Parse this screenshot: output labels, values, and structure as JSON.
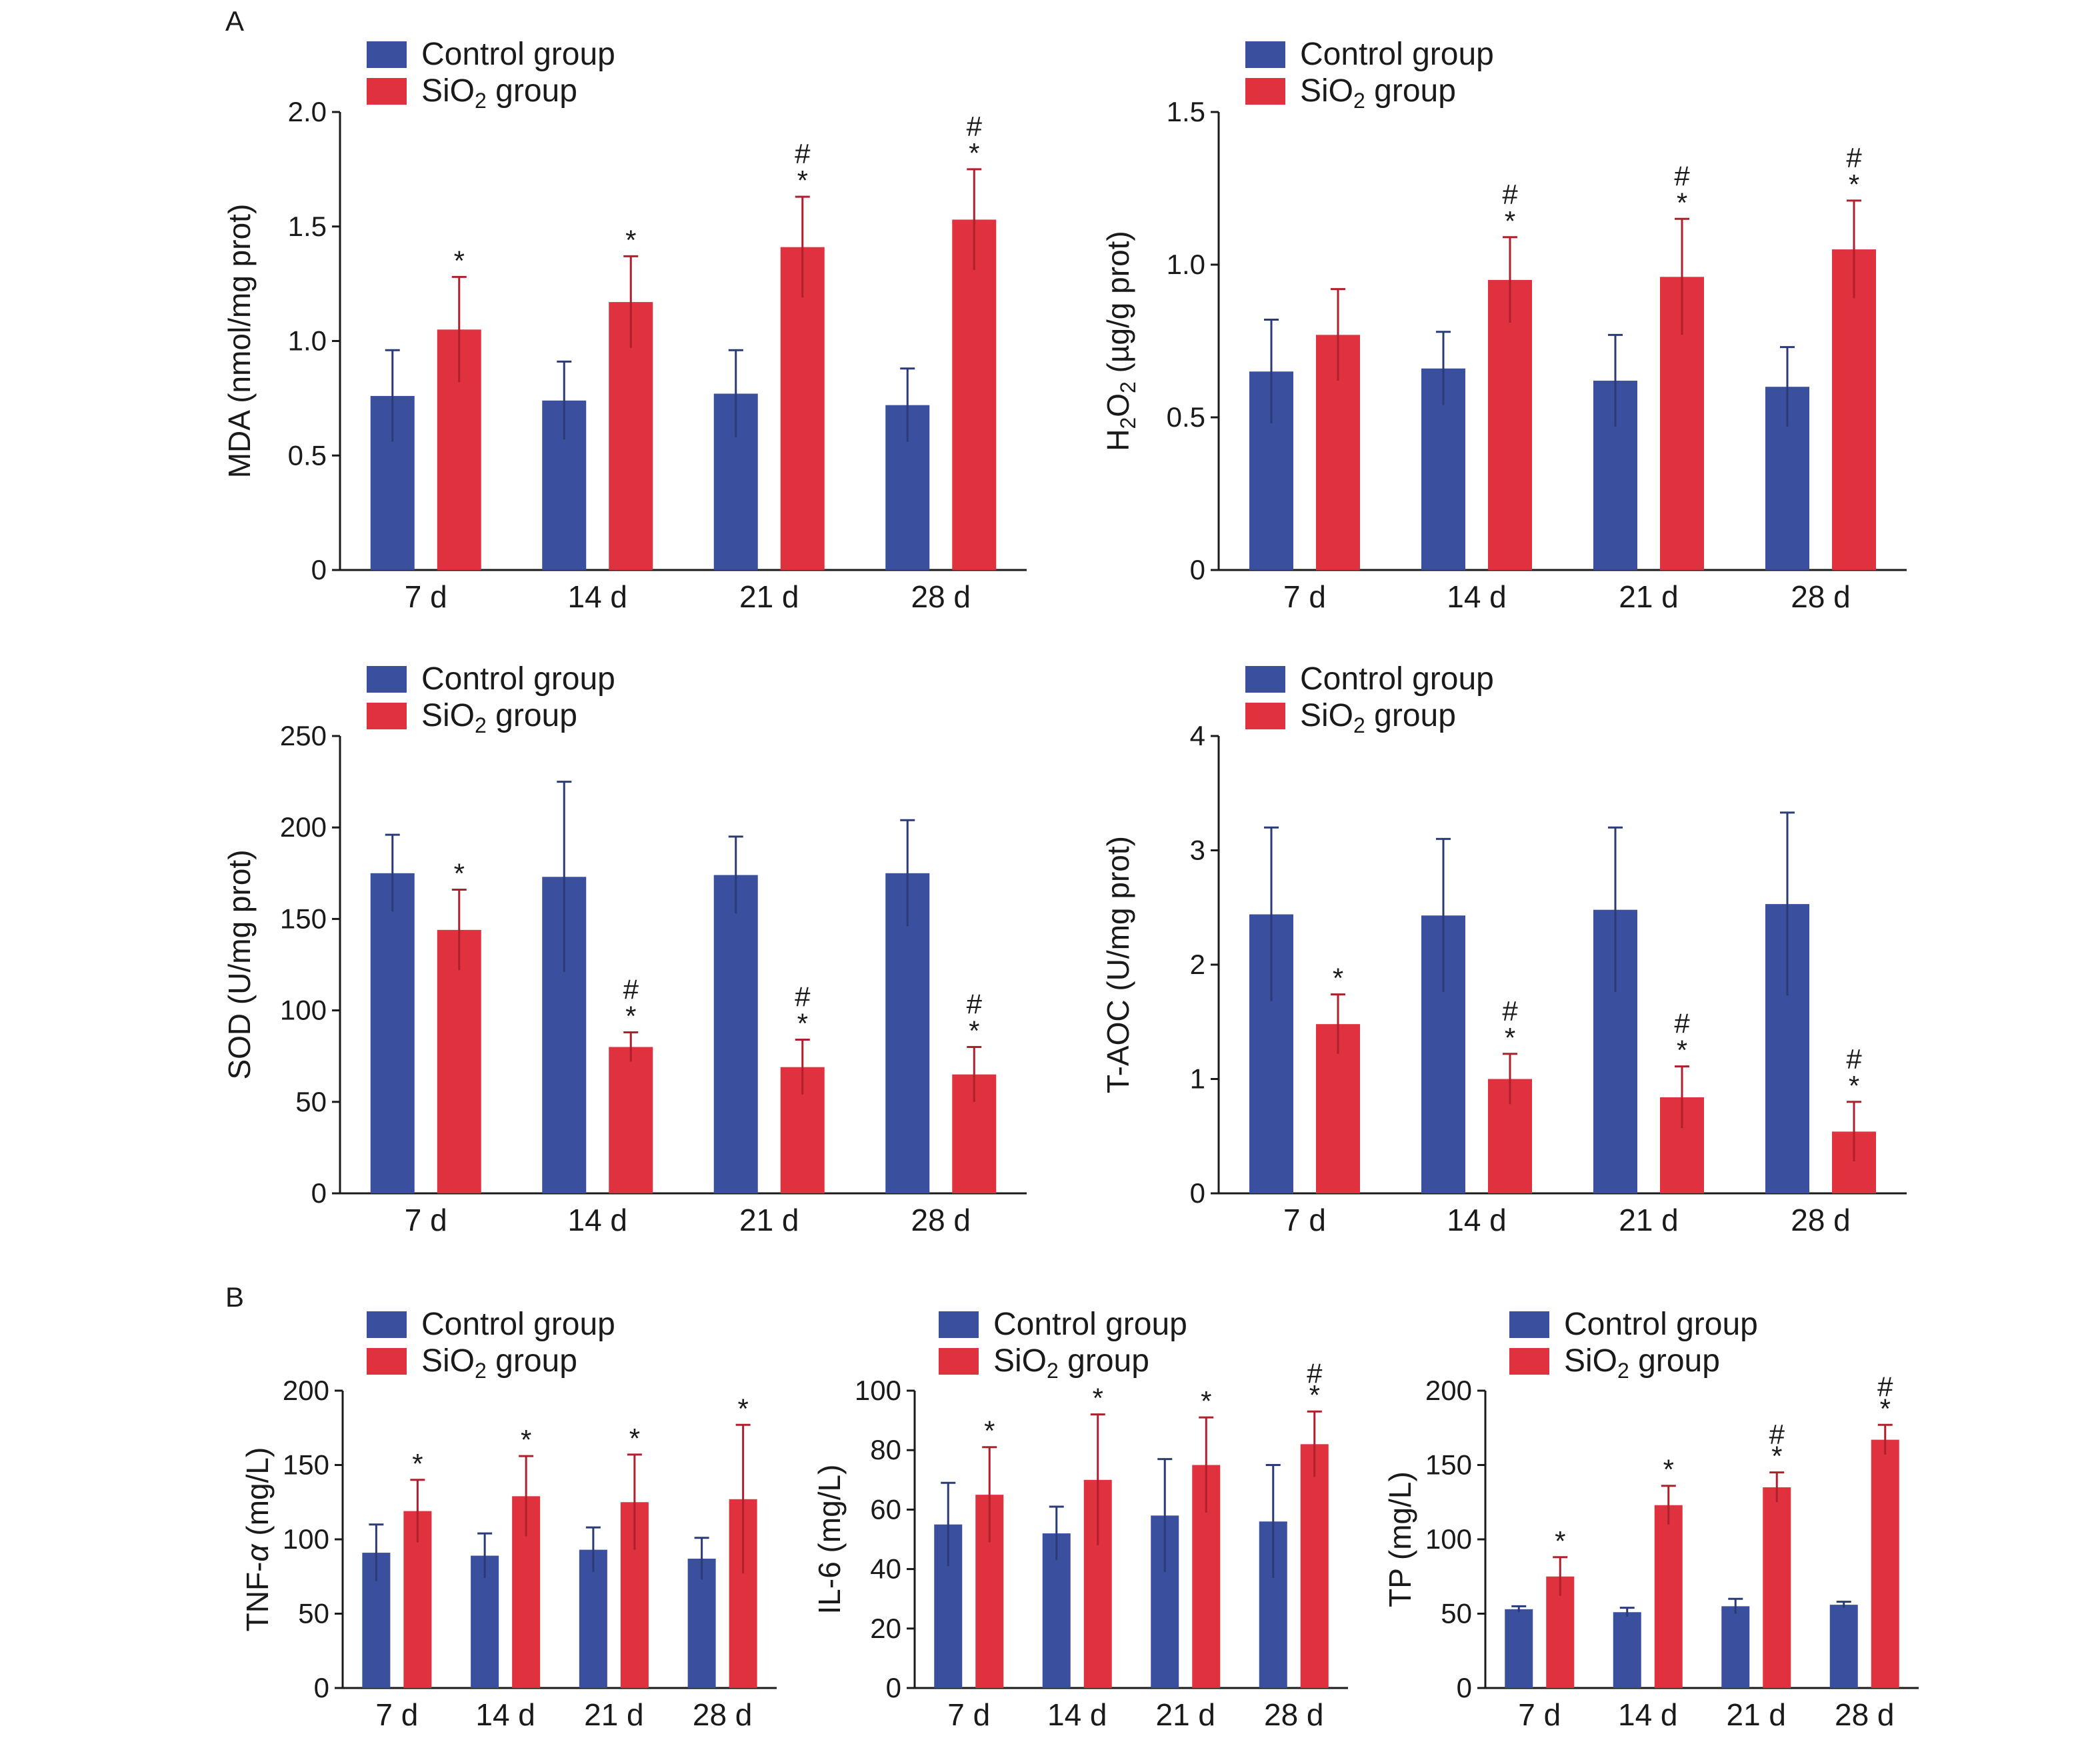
{
  "panel_labels": [
    "A",
    "B"
  ],
  "legend": [
    {
      "label": "Control group",
      "color": "#3a4f9e"
    },
    {
      "label": "SiO",
      "sub": "2",
      "tail": " group",
      "color": "#e0313f"
    }
  ],
  "colors": {
    "control": "#3a4f9e",
    "sio2": "#e0313f",
    "control_err": "#2b3b77",
    "sio2_err": "#b01f2c",
    "axis": "#1a1a1a"
  },
  "chart_data": [
    {
      "type": "bar",
      "ylabel": {
        "text": "MDA (nmol/mg prot)"
      },
      "categories": [
        "7 d",
        "14 d",
        "21 d",
        "28 d"
      ],
      "yticks": [
        "0",
        "0.5",
        "1.0",
        "1.5",
        "2.0"
      ],
      "ylim": [
        0,
        2.0
      ],
      "series": [
        {
          "name": "Control group",
          "values": [
            0.76,
            0.74,
            0.77,
            0.72
          ],
          "errors": [
            0.2,
            0.17,
            0.19,
            0.16
          ]
        },
        {
          "name": "SiO2 group",
          "values": [
            1.05,
            1.17,
            1.41,
            1.53
          ],
          "errors": [
            0.23,
            0.2,
            0.22,
            0.22
          ]
        }
      ],
      "significance": [
        "*",
        "*",
        "*#",
        "*#"
      ]
    },
    {
      "type": "bar",
      "ylabel": {
        "pre": "H",
        "sub": "2",
        "post": "O",
        "sub2": "2",
        "tail": " (µg/g prot)"
      },
      "categories": [
        "7 d",
        "14 d",
        "21 d",
        "28 d"
      ],
      "yticks": [
        "0",
        "0.5",
        "1.0",
        "1.5"
      ],
      "ylim": [
        0,
        1.5
      ],
      "series": [
        {
          "name": "Control group",
          "values": [
            0.65,
            0.66,
            0.62,
            0.6
          ],
          "errors": [
            0.17,
            0.12,
            0.15,
            0.13
          ]
        },
        {
          "name": "SiO2 group",
          "values": [
            0.77,
            0.95,
            0.96,
            1.05
          ],
          "errors": [
            0.15,
            0.14,
            0.19,
            0.16
          ]
        }
      ],
      "significance": [
        "",
        "*#",
        "*#",
        "*#"
      ]
    },
    {
      "type": "bar",
      "ylabel": {
        "text": "SOD (U/mg prot)"
      },
      "categories": [
        "7 d",
        "14 d",
        "21 d",
        "28 d"
      ],
      "yticks": [
        "0",
        "50",
        "100",
        "150",
        "200",
        "250"
      ],
      "ylim": [
        0,
        250
      ],
      "series": [
        {
          "name": "Control group",
          "values": [
            175,
            173,
            174,
            175
          ],
          "errors": [
            21,
            52,
            21,
            29
          ]
        },
        {
          "name": "SiO2 group",
          "values": [
            144,
            80,
            69,
            65
          ],
          "errors": [
            22,
            8,
            15,
            15
          ]
        }
      ],
      "significance": [
        "*",
        "*#",
        "*#",
        "*#"
      ]
    },
    {
      "type": "bar",
      "ylabel": {
        "text": "T-AOC (U/mg prot)"
      },
      "categories": [
        "7 d",
        "14 d",
        "21 d",
        "28 d"
      ],
      "yticks": [
        "0",
        "1",
        "2",
        "3",
        "4"
      ],
      "ylim": [
        0,
        4
      ],
      "series": [
        {
          "name": "Control group",
          "values": [
            2.44,
            2.43,
            2.48,
            2.53
          ],
          "errors": [
            0.76,
            0.67,
            0.72,
            0.8
          ]
        },
        {
          "name": "SiO2 group",
          "values": [
            1.48,
            1.0,
            0.84,
            0.54
          ],
          "errors": [
            0.26,
            0.22,
            0.27,
            0.26
          ]
        }
      ],
      "significance": [
        "*",
        "*#",
        "*#",
        "*#"
      ]
    },
    {
      "type": "bar",
      "ylabel": {
        "pre": "TNF-",
        "italic": "α",
        "tail": " (mg/L)"
      },
      "categories": [
        "7 d",
        "14 d",
        "21 d",
        "28 d"
      ],
      "yticks": [
        "0",
        "50",
        "100",
        "150",
        "200"
      ],
      "ylim": [
        0,
        200
      ],
      "series": [
        {
          "name": "Control group",
          "values": [
            91,
            89,
            93,
            87
          ],
          "errors": [
            19,
            15,
            15,
            14
          ]
        },
        {
          "name": "SiO2 group",
          "values": [
            119,
            129,
            125,
            127
          ],
          "errors": [
            21,
            27,
            32,
            50
          ]
        }
      ],
      "significance": [
        "*",
        "*",
        "*",
        "*"
      ]
    },
    {
      "type": "bar",
      "ylabel": {
        "text": "IL-6 (mg/L)"
      },
      "categories": [
        "7 d",
        "14 d",
        "21 d",
        "28 d"
      ],
      "yticks": [
        "0",
        "20",
        "40",
        "60",
        "80",
        "100"
      ],
      "ylim": [
        0,
        100
      ],
      "series": [
        {
          "name": "Control group",
          "values": [
            55,
            52,
            58,
            56
          ],
          "errors": [
            14,
            9,
            19,
            19
          ]
        },
        {
          "name": "SiO2 group",
          "values": [
            65,
            70,
            75,
            82
          ],
          "errors": [
            16,
            22,
            16,
            11
          ]
        }
      ],
      "significance": [
        "*",
        "*",
        "*",
        "*#"
      ]
    },
    {
      "type": "bar",
      "ylabel": {
        "text": "TP (mg/L)"
      },
      "categories": [
        "7 d",
        "14 d",
        "21 d",
        "28 d"
      ],
      "yticks": [
        "0",
        "50",
        "100",
        "150",
        "200"
      ],
      "ylim": [
        0,
        200
      ],
      "series": [
        {
          "name": "Control group",
          "values": [
            53,
            51,
            55,
            56
          ],
          "errors": [
            2,
            3,
            5,
            2
          ]
        },
        {
          "name": "SiO2 group",
          "values": [
            75,
            123,
            135,
            167
          ],
          "errors": [
            13,
            13,
            10,
            10
          ]
        }
      ],
      "significance": [
        "*",
        "*",
        "*#",
        "*#"
      ]
    }
  ]
}
